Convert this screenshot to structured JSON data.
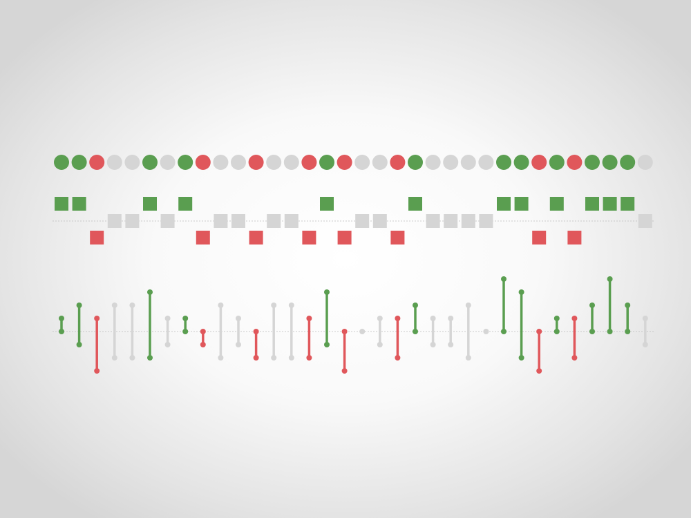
{
  "colors": {
    "win": "#5a9e50",
    "loss": "#e0575b",
    "neutral": "#d5d5d5",
    "baseline": "#bbbbbb"
  },
  "chart_data": [
    {
      "type": "scatter",
      "variant": "win-loss-dots",
      "title": "",
      "outcomes": [
        "W",
        "W",
        "L",
        "N",
        "N",
        "W",
        "N",
        "W",
        "L",
        "N",
        "N",
        "L",
        "N",
        "N",
        "L",
        "W",
        "L",
        "N",
        "N",
        "L",
        "W",
        "N",
        "N",
        "N",
        "N",
        "W",
        "W",
        "L",
        "W",
        "L",
        "W",
        "W",
        "W",
        "N"
      ]
    },
    {
      "type": "scatter",
      "variant": "win-loss-squares",
      "title": "",
      "outcomes": [
        "W",
        "W",
        "L",
        "N",
        "N",
        "W",
        "N",
        "W",
        "L",
        "N",
        "N",
        "L",
        "N",
        "N",
        "L",
        "W",
        "L",
        "N",
        "N",
        "L",
        "W",
        "N",
        "N",
        "N",
        "N",
        "W",
        "W",
        "L",
        "W",
        "L",
        "W",
        "W",
        "W",
        "N"
      ]
    },
    {
      "type": "bar",
      "variant": "floating-range-bars",
      "title": "",
      "ylim": [
        -3,
        4
      ],
      "series": [
        {
          "values": [
            {
              "o": "W",
              "from": 0,
              "to": 1
            },
            {
              "o": "W",
              "from": -1,
              "to": 2
            },
            {
              "o": "L",
              "from": -3,
              "to": 1
            },
            {
              "o": "N",
              "from": -2,
              "to": 2
            },
            {
              "o": "N",
              "from": -2,
              "to": 2
            },
            {
              "o": "W",
              "from": -2,
              "to": 3
            },
            {
              "o": "N",
              "from": -1,
              "to": 1
            },
            {
              "o": "W",
              "from": 0,
              "to": 1
            },
            {
              "o": "L",
              "from": -1,
              "to": 0
            },
            {
              "o": "N",
              "from": -2,
              "to": 2
            },
            {
              "o": "N",
              "from": -1,
              "to": 1
            },
            {
              "o": "L",
              "from": -2,
              "to": 0
            },
            {
              "o": "N",
              "from": -2,
              "to": 2
            },
            {
              "o": "N",
              "from": -2,
              "to": 2
            },
            {
              "o": "L",
              "from": -2,
              "to": 1
            },
            {
              "o": "W",
              "from": -1,
              "to": 3
            },
            {
              "o": "L",
              "from": -3,
              "to": 0
            },
            {
              "o": "N",
              "from": 0,
              "to": 0
            },
            {
              "o": "N",
              "from": -1,
              "to": 1
            },
            {
              "o": "L",
              "from": -2,
              "to": 1
            },
            {
              "o": "W",
              "from": 0,
              "to": 2
            },
            {
              "o": "N",
              "from": -1,
              "to": 1
            },
            {
              "o": "N",
              "from": -1,
              "to": 1
            },
            {
              "o": "N",
              "from": -2,
              "to": 2
            },
            {
              "o": "N",
              "from": 0,
              "to": 0
            },
            {
              "o": "W",
              "from": 0,
              "to": 4
            },
            {
              "o": "W",
              "from": -2,
              "to": 3
            },
            {
              "o": "L",
              "from": -3,
              "to": 0
            },
            {
              "o": "W",
              "from": 0,
              "to": 1
            },
            {
              "o": "L",
              "from": -2,
              "to": 1
            },
            {
              "o": "W",
              "from": 0,
              "to": 2
            },
            {
              "o": "W",
              "from": 0,
              "to": 4
            },
            {
              "o": "W",
              "from": 0,
              "to": 2
            },
            {
              "o": "N",
              "from": -1,
              "to": 1
            }
          ]
        }
      ]
    }
  ]
}
